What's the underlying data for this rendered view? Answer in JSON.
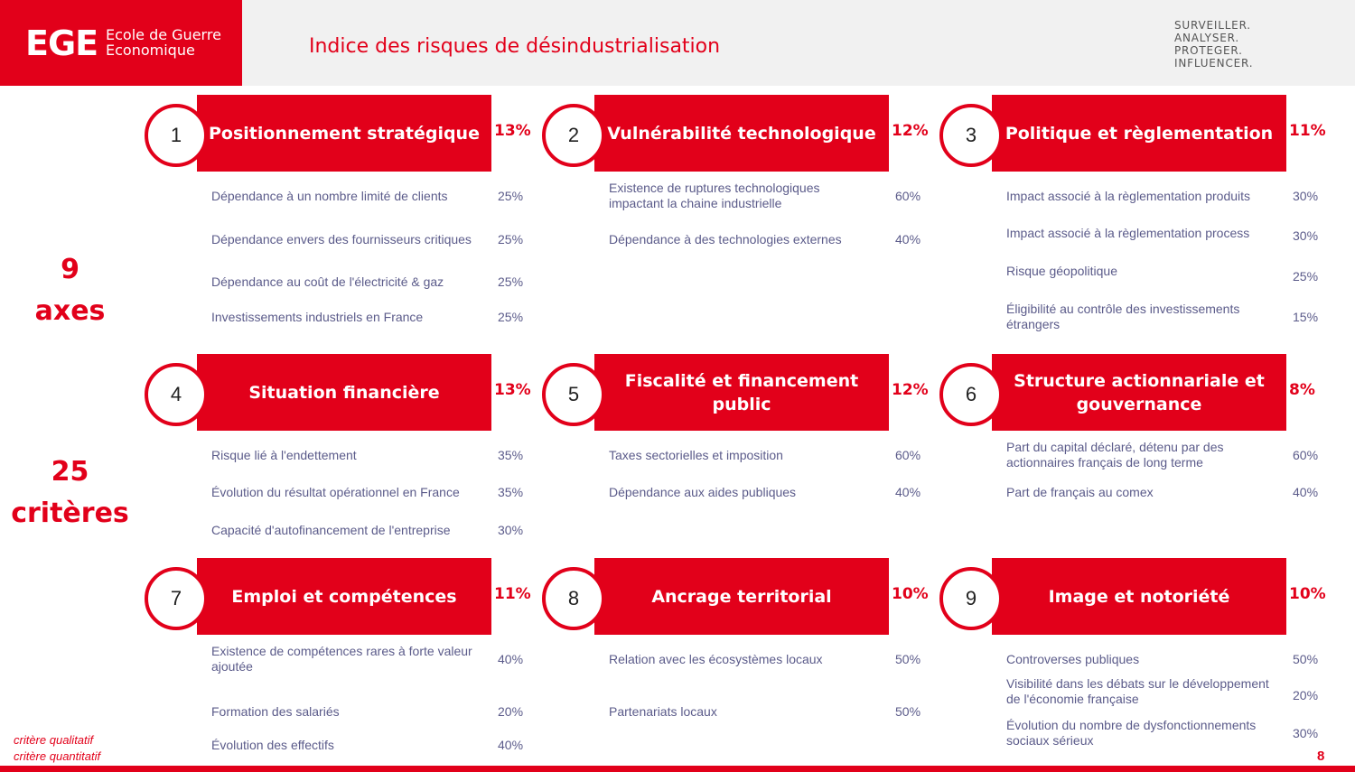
{
  "header": {
    "logo_mark": "EGE",
    "logo_name_line1": "Ecole de Guerre",
    "logo_name_line2": "Economique",
    "title": "Indice des risques de désindustrialisation",
    "motto": [
      "SURVEILLER.",
      "ANALYSER.",
      "PROTEGER.",
      "INFLUENCER."
    ]
  },
  "side": {
    "axes_count": "9",
    "axes_label": "axes",
    "criteria_count": "25",
    "criteria_label": "critères"
  },
  "axes": [
    {
      "number": "1",
      "title": "Positionnement stratégique",
      "weight": "13%",
      "criteria": [
        {
          "label": "Dépendance à un nombre limité de clients",
          "weight": "25%"
        },
        {
          "label": "Dépendance envers des fournisseurs critiques",
          "weight": "25%"
        },
        {
          "label": "Dépendance au coût de l'électricité & gaz",
          "weight": "25%"
        },
        {
          "label": "Investissements industriels en France",
          "weight": "25%"
        }
      ]
    },
    {
      "number": "2",
      "title": "Vulnérabilité technologique",
      "weight": "12%",
      "criteria": [
        {
          "label": "Existence de ruptures technologiques impactant la chaine industrielle",
          "weight": "60%"
        },
        {
          "label": "Dépendance à des technologies externes",
          "weight": "40%"
        }
      ]
    },
    {
      "number": "3",
      "title": "Politique et règlementation",
      "weight": "11%",
      "criteria": [
        {
          "label": "Impact associé à la règlementation produits",
          "weight": "30%"
        },
        {
          "label": "Impact associé à la règlementation process",
          "weight": "30%"
        },
        {
          "label": "Risque géopolitique",
          "weight": "25%"
        },
        {
          "label": "Éligibilité au contrôle des investissements étrangers",
          "weight": "15%"
        }
      ]
    },
    {
      "number": "4",
      "title": "Situation financière",
      "weight": "13%",
      "criteria": [
        {
          "label": "Risque lié à l'endettement",
          "weight": "35%"
        },
        {
          "label": "Évolution du résultat opérationnel en France",
          "weight": "35%"
        },
        {
          "label": "Capacité d'autofinancement de l'entreprise",
          "weight": "30%"
        }
      ]
    },
    {
      "number": "5",
      "title": "Fiscalité et financement public",
      "weight": "12%",
      "criteria": [
        {
          "label": "Taxes sectorielles et imposition",
          "weight": "60%"
        },
        {
          "label": "Dépendance aux aides publiques",
          "weight": "40%"
        }
      ]
    },
    {
      "number": "6",
      "title": "Structure actionnariale et gouvernance",
      "weight": "8%",
      "criteria": [
        {
          "label": "Part du capital déclaré, détenu par des actionnaires français de long terme",
          "weight": "60%"
        },
        {
          "label": "Part de français au comex",
          "weight": "40%"
        }
      ]
    },
    {
      "number": "7",
      "title": "Emploi et compétences",
      "weight": "11%",
      "criteria": [
        {
          "label": "Existence de compétences rares à forte valeur ajoutée",
          "weight": "40%"
        },
        {
          "label": "Formation des salariés",
          "weight": "20%"
        },
        {
          "label": "Évolution des effectifs",
          "weight": "40%"
        }
      ]
    },
    {
      "number": "8",
      "title": "Ancrage territorial",
      "weight": "10%",
      "criteria": [
        {
          "label": "Relation avec les écosystèmes locaux",
          "weight": "50%"
        },
        {
          "label": "Partenariats locaux",
          "weight": "50%"
        }
      ]
    },
    {
      "number": "9",
      "title": "Image et notoriété",
      "weight": "10%",
      "criteria": [
        {
          "label": "Controverses publiques",
          "weight": "50%"
        },
        {
          "label": "Visibilité dans les débats sur le développement de l'économie française",
          "weight": "20%"
        },
        {
          "label": "Évolution du nombre de dysfonctionnements sociaux sérieux",
          "weight": "30%"
        }
      ]
    }
  ],
  "legend": {
    "qualitative": "critère qualitatif",
    "quantitative": "critère quantitatif"
  },
  "page_number": "8"
}
